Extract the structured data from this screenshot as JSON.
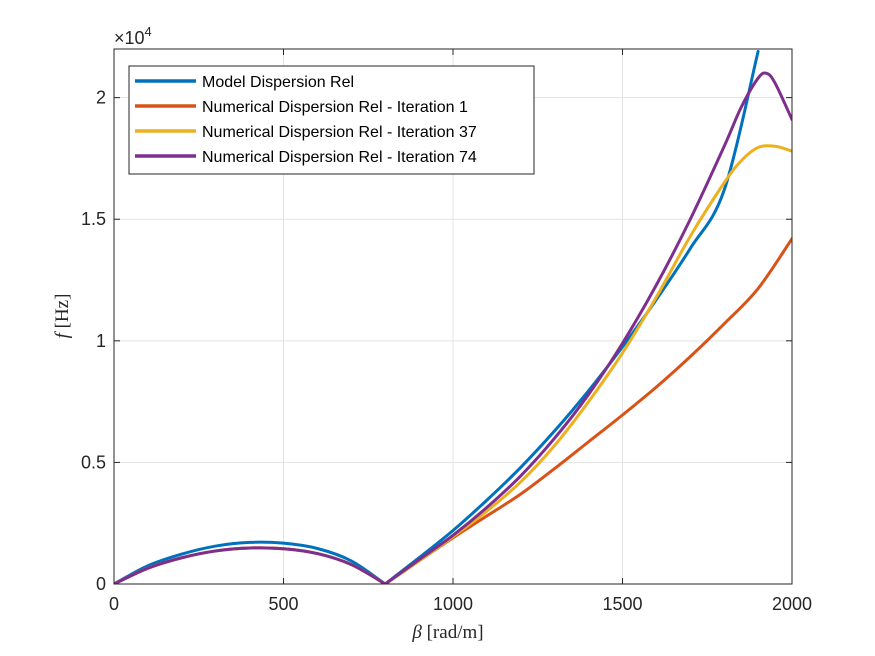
{
  "chart_data": {
    "type": "line",
    "title": "",
    "xlabel_symbol": "β",
    "xlabel_unit": "[rad/m]",
    "ylabel_symbol": "f",
    "ylabel_unit": "[Hz]",
    "y_multiplier": "×10",
    "y_multiplier_exp": "4",
    "xlim": [
      0,
      2000
    ],
    "ylim": [
      0,
      22000
    ],
    "xticks": [
      0,
      500,
      1000,
      1500,
      2000
    ],
    "xtick_labels": [
      "0",
      "500",
      "1000",
      "1500",
      "2000"
    ],
    "yticks": [
      0,
      5000,
      10000,
      15000,
      20000
    ],
    "ytick_labels": [
      "0",
      "0.5",
      "1",
      "1.5",
      "2"
    ],
    "grid": true,
    "legend_position": "top-left",
    "series": [
      {
        "name": "Model Dispersion Rel",
        "color": "#0072BD",
        "x": [
          0,
          100,
          200,
          300,
          400,
          500,
          600,
          700,
          800,
          900,
          1000,
          1100,
          1200,
          1300,
          1400,
          1500,
          1600,
          1700,
          1800,
          1900
        ],
        "y": [
          0,
          750,
          1230,
          1560,
          1710,
          1680,
          1460,
          950,
          0,
          1080,
          2200,
          3450,
          4800,
          6300,
          7950,
          9750,
          11700,
          13800,
          16200,
          21900
        ]
      },
      {
        "name": "Numerical Dispersion Rel - Iteration 1",
        "color": "#D95319",
        "x": [
          0,
          100,
          200,
          300,
          400,
          500,
          600,
          700,
          800,
          900,
          1000,
          1100,
          1200,
          1300,
          1400,
          1500,
          1600,
          1700,
          1800,
          1900,
          2000
        ],
        "y": [
          0,
          650,
          1080,
          1360,
          1480,
          1450,
          1250,
          800,
          0,
          950,
          1900,
          2800,
          3700,
          4750,
          5850,
          6950,
          8100,
          9350,
          10700,
          12150,
          14200
        ]
      },
      {
        "name": "Numerical Dispersion Rel - Iteration 37",
        "color": "#EDB120",
        "x": [
          0,
          100,
          200,
          300,
          400,
          500,
          600,
          700,
          800,
          900,
          1000,
          1100,
          1200,
          1300,
          1400,
          1500,
          1600,
          1700,
          1800,
          1850,
          1900,
          1950,
          2000
        ],
        "y": [
          0,
          650,
          1080,
          1360,
          1480,
          1450,
          1250,
          800,
          0,
          950,
          1950,
          3000,
          4200,
          5700,
          7500,
          9500,
          11800,
          14300,
          16500,
          17400,
          17950,
          18000,
          17800
        ]
      },
      {
        "name": "Numerical Dispersion Rel - Iteration 74",
        "color": "#7E2F8E",
        "x": [
          0,
          100,
          200,
          300,
          400,
          500,
          600,
          700,
          800,
          900,
          1000,
          1100,
          1200,
          1300,
          1400,
          1500,
          1600,
          1700,
          1800,
          1850,
          1900,
          1925,
          1950,
          2000
        ],
        "y": [
          0,
          650,
          1080,
          1360,
          1480,
          1450,
          1250,
          800,
          0,
          1000,
          2000,
          3150,
          4450,
          6000,
          7800,
          9900,
          12300,
          15000,
          18000,
          19600,
          20800,
          21000,
          20600,
          19100
        ]
      }
    ]
  }
}
